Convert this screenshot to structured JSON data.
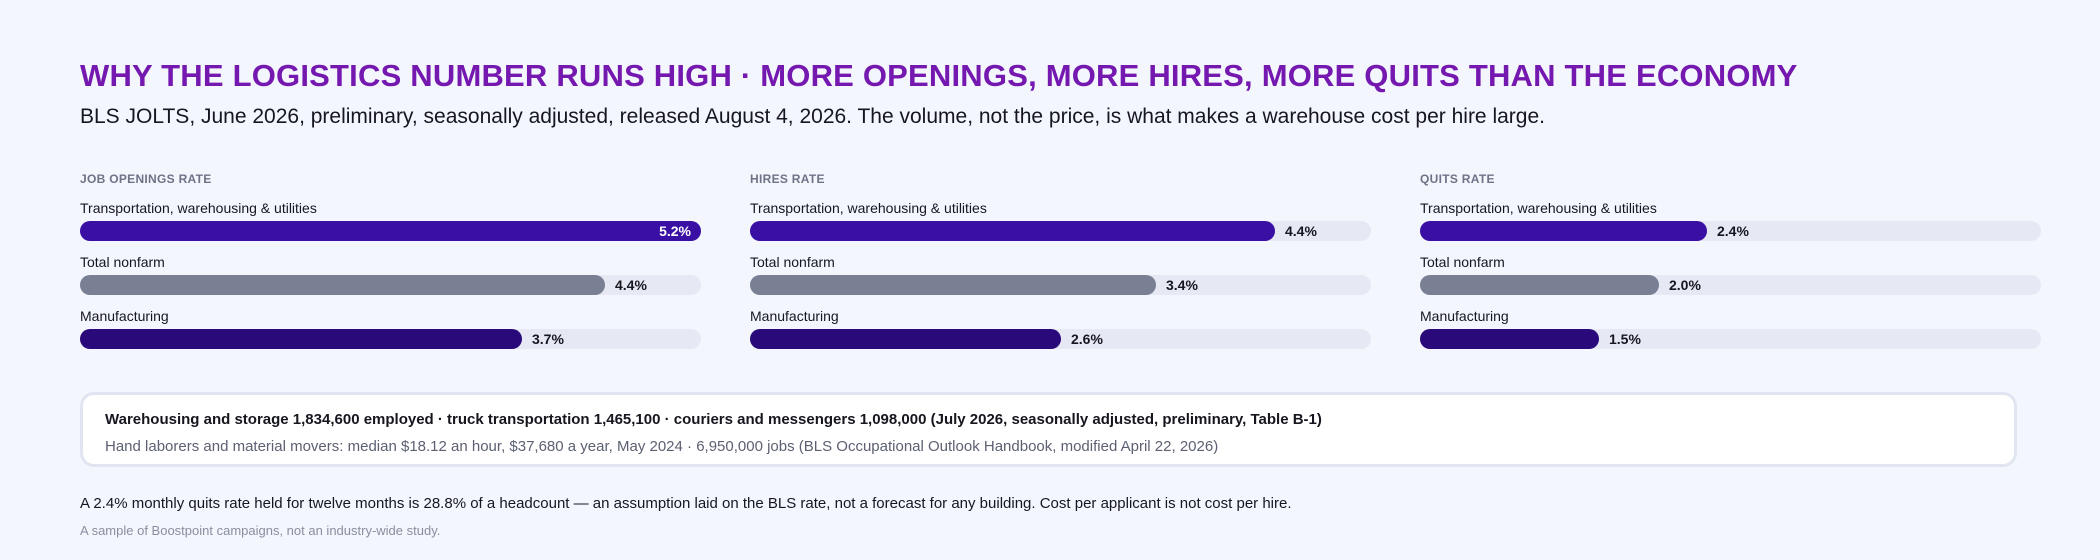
{
  "title": "WHY THE LOGISTICS NUMBER RUNS HIGH · MORE OPENINGS, MORE HIRES, MORE QUITS THAN THE ECONOMY",
  "subtitle": "BLS JOLTS, June 2026, preliminary, seasonally adjusted, released August 4, 2026. The volume, not the price, is what makes a warehouse cost per hire large.",
  "colors": {
    "title": "#7418b0",
    "transportation": "#3a0fa3",
    "total_nonfarm": "#7a8094",
    "manufacturing": "#2a0a7a",
    "track": "#e6e9f3"
  },
  "chart_data": [
    {
      "type": "bar",
      "title": "JOB OPENINGS RATE",
      "categories": [
        "Transportation, warehousing & utilities",
        "Total nonfarm",
        "Manufacturing"
      ],
      "values": [
        5.2,
        4.4,
        3.7
      ],
      "value_labels": [
        "5.2%",
        "4.4%",
        "3.7%"
      ],
      "xlim": [
        0,
        5.2
      ],
      "orientation": "horizontal"
    },
    {
      "type": "bar",
      "title": "HIRES RATE",
      "categories": [
        "Transportation, warehousing & utilities",
        "Total nonfarm",
        "Manufacturing"
      ],
      "values": [
        4.4,
        3.4,
        2.6
      ],
      "value_labels": [
        "4.4%",
        "3.4%",
        "2.6%"
      ],
      "xlim": [
        0,
        5.2
      ],
      "orientation": "horizontal"
    },
    {
      "type": "bar",
      "title": "QUITS RATE",
      "categories": [
        "Transportation, warehousing & utilities",
        "Total nonfarm",
        "Manufacturing"
      ],
      "values": [
        2.4,
        2.0,
        1.5
      ],
      "value_labels": [
        "2.4%",
        "2.0%",
        "1.5%"
      ],
      "xlim": [
        0,
        5.2
      ],
      "orientation": "horizontal"
    }
  ],
  "facts": {
    "line1": "Warehousing and storage 1,834,600 employed · truck transportation 1,465,100 · couriers and messengers 1,098,000 (July 2026, seasonally adjusted, preliminary, Table B-1)",
    "line2": "Hand laborers and material movers: median $18.12 an hour, $37,680 a year, May 2024 · 6,950,000 jobs (BLS Occupational Outlook Handbook, modified April 22, 2026)"
  },
  "note": "A 2.4% monthly quits rate held for twelve months is 28.8% of a headcount — an assumption laid on the BLS rate, not a forecast for any building. Cost per applicant is not cost per hire.",
  "disclaimer": "A sample of Boostpoint campaigns, not an industry-wide study."
}
